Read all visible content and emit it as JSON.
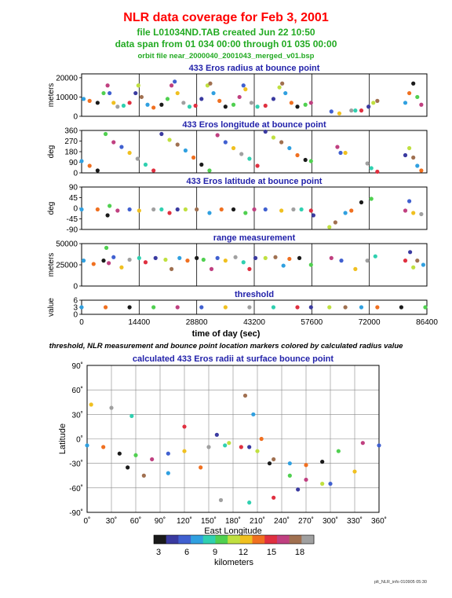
{
  "header": {
    "title": "NLR data coverage for Feb 3, 2001",
    "line1": "file L01034ND.TAB created Jun 22 10:50",
    "line2": "data span from 01 034 00:00 through 01 035 00:00",
    "line3": "orbit file near_2000040_2001043_merged_v01.bsp",
    "title_color": "#ff0000",
    "subtitle_color": "#22aa22"
  },
  "caption": "threshold, NLR measurement and bounce point location markers colored by calculated radius value",
  "footer": "plt_NLR_info 010905 05:30",
  "time_axis": {
    "label": "time of day (sec)",
    "ticks": [
      "0",
      "14400",
      "28800",
      "43200",
      "57600",
      "72000",
      "86400"
    ]
  },
  "chart_data": [
    {
      "type": "scatter",
      "title": "433 Eros radius at bounce point",
      "ylabel": "meters",
      "yticks": [
        "0",
        "10000",
        "20000"
      ],
      "ylim": [
        0,
        22000
      ],
      "xlim": [
        0,
        86400
      ],
      "series_points": [
        [
          500,
          9000
        ],
        [
          2000,
          8000
        ],
        [
          4000,
          7000
        ],
        [
          5500,
          12000
        ],
        [
          6500,
          16000
        ],
        [
          7000,
          12000
        ],
        [
          8000,
          7000
        ],
        [
          9000,
          5000
        ],
        [
          10500,
          5500
        ],
        [
          12000,
          7000
        ],
        [
          13500,
          12000
        ],
        [
          14200,
          16000
        ],
        [
          15000,
          10000
        ],
        [
          16500,
          6000
        ],
        [
          18000,
          4500
        ],
        [
          20000,
          6000
        ],
        [
          21500,
          9000
        ],
        [
          22500,
          16000
        ],
        [
          23300,
          18000
        ],
        [
          24000,
          12000
        ],
        [
          25500,
          7000
        ],
        [
          27000,
          5000
        ],
        [
          28500,
          5500
        ],
        [
          30000,
          9000
        ],
        [
          31500,
          16000
        ],
        [
          32200,
          17000
        ],
        [
          33000,
          12000
        ],
        [
          34500,
          8000
        ],
        [
          36000,
          5000
        ],
        [
          38000,
          6000
        ],
        [
          39500,
          10000
        ],
        [
          40500,
          16000
        ],
        [
          41000,
          14000
        ],
        [
          42500,
          7000
        ],
        [
          44000,
          5000
        ],
        [
          46000,
          5500
        ],
        [
          48000,
          9000
        ],
        [
          49500,
          15000
        ],
        [
          50200,
          17000
        ],
        [
          51000,
          12000
        ],
        [
          52500,
          7000
        ],
        [
          54000,
          5000
        ],
        [
          56000,
          6000
        ],
        [
          57400,
          7000
        ],
        [
          62500,
          2500
        ],
        [
          64500,
          1500
        ],
        [
          67500,
          3000
        ],
        [
          68500,
          3000
        ],
        [
          70000,
          3000
        ],
        [
          71800,
          5000
        ],
        [
          73000,
          7000
        ],
        [
          74000,
          8000
        ],
        [
          81000,
          7000
        ],
        [
          82000,
          12000
        ],
        [
          83000,
          17000
        ],
        [
          84000,
          10000
        ],
        [
          85000,
          6000
        ]
      ]
    },
    {
      "type": "scatter",
      "title": "433 Eros longitude at bounce point",
      "ylabel": "deg",
      "yticks": [
        "0",
        "90",
        "180",
        "270",
        "360"
      ],
      "ylim": [
        0,
        360
      ],
      "xlim": [
        0,
        86400
      ],
      "series_points": [
        [
          0,
          100
        ],
        [
          2000,
          60
        ],
        [
          4000,
          20
        ],
        [
          6000,
          330
        ],
        [
          8000,
          260
        ],
        [
          10000,
          220
        ],
        [
          12000,
          170
        ],
        [
          14000,
          120
        ],
        [
          16000,
          70
        ],
        [
          18000,
          20
        ],
        [
          20000,
          330
        ],
        [
          22000,
          280
        ],
        [
          24000,
          240
        ],
        [
          26000,
          190
        ],
        [
          28000,
          130
        ],
        [
          30000,
          70
        ],
        [
          32000,
          20
        ],
        [
          34000,
          320
        ],
        [
          36000,
          260
        ],
        [
          38000,
          210
        ],
        [
          40000,
          160
        ],
        [
          42000,
          120
        ],
        [
          44000,
          60
        ],
        [
          46000,
          350
        ],
        [
          48000,
          300
        ],
        [
          50000,
          260
        ],
        [
          52000,
          210
        ],
        [
          54000,
          150
        ],
        [
          56000,
          110
        ],
        [
          57400,
          100
        ],
        [
          64000,
          220
        ],
        [
          64800,
          170
        ],
        [
          66000,
          170
        ],
        [
          71500,
          80
        ],
        [
          72500,
          40
        ],
        [
          74000,
          10
        ],
        [
          81000,
          150
        ],
        [
          82000,
          210
        ],
        [
          83000,
          130
        ],
        [
          84000,
          60
        ],
        [
          85000,
          20
        ]
      ]
    },
    {
      "type": "scatter",
      "title": "433 Eros latitude at bounce point",
      "ylabel": "deg",
      "yticks": [
        "-90",
        "-45",
        "0",
        "45",
        "90"
      ],
      "ylim": [
        -90,
        90
      ],
      "xlim": [
        0,
        86400
      ],
      "series_points": [
        [
          0,
          -5
        ],
        [
          4000,
          -5
        ],
        [
          6500,
          -30
        ],
        [
          7000,
          10
        ],
        [
          9000,
          -10
        ],
        [
          12000,
          -5
        ],
        [
          14400,
          -10
        ],
        [
          18000,
          -5
        ],
        [
          20000,
          -5
        ],
        [
          22000,
          -20
        ],
        [
          24000,
          -5
        ],
        [
          26000,
          -5
        ],
        [
          28800,
          -5
        ],
        [
          32000,
          -20
        ],
        [
          35000,
          -5
        ],
        [
          38000,
          -5
        ],
        [
          41000,
          -20
        ],
        [
          43200,
          -5
        ],
        [
          46000,
          -5
        ],
        [
          50000,
          -10
        ],
        [
          53000,
          -5
        ],
        [
          55000,
          -5
        ],
        [
          57400,
          -10
        ],
        [
          58000,
          -30
        ],
        [
          62000,
          -80
        ],
        [
          63500,
          -60
        ],
        [
          66000,
          -20
        ],
        [
          67500,
          -10
        ],
        [
          70000,
          25
        ],
        [
          72500,
          40
        ],
        [
          81000,
          -10
        ],
        [
          82000,
          30
        ],
        [
          83000,
          -20
        ],
        [
          85000,
          -25
        ]
      ]
    },
    {
      "type": "scatter",
      "title": "range measurement",
      "ylabel": "meters",
      "yticks": [
        "0",
        "25000",
        "50000"
      ],
      "ylim": [
        0,
        50000
      ],
      "xlim": [
        0,
        86400
      ],
      "series_points": [
        [
          500,
          30000
        ],
        [
          3000,
          26000
        ],
        [
          5500,
          30000
        ],
        [
          6200,
          45000
        ],
        [
          6800,
          27000
        ],
        [
          8000,
          34000
        ],
        [
          10000,
          22000
        ],
        [
          12000,
          31000
        ],
        [
          14400,
          33000
        ],
        [
          16000,
          28000
        ],
        [
          18500,
          33000
        ],
        [
          21000,
          31000
        ],
        [
          22500,
          20000
        ],
        [
          24500,
          33000
        ],
        [
          26500,
          30000
        ],
        [
          28800,
          33000
        ],
        [
          30500,
          31000
        ],
        [
          32500,
          20000
        ],
        [
          34000,
          33000
        ],
        [
          36000,
          30000
        ],
        [
          38500,
          34000
        ],
        [
          40500,
          28000
        ],
        [
          42000,
          20000
        ],
        [
          43500,
          33000
        ],
        [
          46000,
          33000
        ],
        [
          48500,
          34000
        ],
        [
          50500,
          24000
        ],
        [
          52000,
          32000
        ],
        [
          54500,
          33000
        ],
        [
          57400,
          25000
        ],
        [
          62500,
          33000
        ],
        [
          65000,
          30000
        ],
        [
          68500,
          20000
        ],
        [
          71500,
          30000
        ],
        [
          73500,
          35000
        ],
        [
          81000,
          30000
        ],
        [
          82200,
          40000
        ],
        [
          83000,
          22000
        ],
        [
          84000,
          30000
        ],
        [
          85500,
          25000
        ]
      ]
    },
    {
      "type": "scatter",
      "title": "threshold",
      "ylabel": "value",
      "yticks": [
        "0",
        "3",
        "6"
      ],
      "ylim": [
        0,
        6
      ],
      "xlim": [
        0,
        86400
      ],
      "series_points": [
        [
          0,
          3
        ],
        [
          6000,
          3
        ],
        [
          12000,
          3
        ],
        [
          18000,
          3
        ],
        [
          24000,
          3
        ],
        [
          30000,
          3
        ],
        [
          36000,
          3
        ],
        [
          42000,
          3
        ],
        [
          48000,
          3
        ],
        [
          54000,
          3
        ],
        [
          57400,
          3
        ],
        [
          62000,
          3
        ],
        [
          66000,
          3
        ],
        [
          70000,
          3
        ],
        [
          74000,
          3
        ],
        [
          80000,
          3
        ],
        [
          86000,
          3
        ]
      ]
    },
    {
      "type": "scatter",
      "title": "calculated 433 Eros radii at surface bounce point",
      "xlabel": "East Longitude",
      "ylabel": "Latitude",
      "xticks": [
        "0˚",
        "30˚",
        "60˚",
        "90˚",
        "120˚",
        "150˚",
        "180˚",
        "210˚",
        "240˚",
        "270˚",
        "300˚",
        "330˚",
        "360˚"
      ],
      "yticks": [
        "90˚",
        "60˚",
        "30˚",
        "0˚",
        "-30˚",
        "-60˚",
        "-90˚"
      ],
      "xlim": [
        0,
        360
      ],
      "ylim": [
        -90,
        90
      ],
      "colorbar_label": "kilometers",
      "colorbar_ticks": [
        "3",
        "6",
        "9",
        "12",
        "15",
        "18"
      ],
      "series_points": [
        [
          0,
          -8
        ],
        [
          20,
          -10
        ],
        [
          40,
          -18
        ],
        [
          60,
          -20
        ],
        [
          80,
          -25
        ],
        [
          100,
          -18
        ],
        [
          120,
          -15
        ],
        [
          150,
          -10
        ],
        [
          170,
          -8
        ],
        [
          190,
          -10
        ],
        [
          200,
          -10
        ],
        [
          210,
          -15
        ],
        [
          230,
          -25
        ],
        [
          250,
          -30
        ],
        [
          270,
          -32
        ],
        [
          290,
          -28
        ],
        [
          310,
          -15
        ],
        [
          340,
          -5
        ],
        [
          360,
          -8
        ],
        [
          5,
          42
        ],
        [
          30,
          38
        ],
        [
          55,
          28
        ],
        [
          120,
          15
        ],
        [
          160,
          5
        ],
        [
          175,
          -5
        ],
        [
          195,
          53
        ],
        [
          205,
          30
        ],
        [
          215,
          0
        ],
        [
          225,
          -30
        ],
        [
          250,
          -45
        ],
        [
          270,
          -50
        ],
        [
          300,
          -55
        ],
        [
          330,
          -40
        ],
        [
          165,
          -75
        ],
        [
          200,
          -78
        ],
        [
          230,
          -72
        ],
        [
          260,
          -62
        ],
        [
          290,
          -55
        ],
        [
          70,
          -45
        ],
        [
          100,
          -42
        ],
        [
          140,
          -35
        ],
        [
          50,
          -35
        ]
      ]
    }
  ]
}
